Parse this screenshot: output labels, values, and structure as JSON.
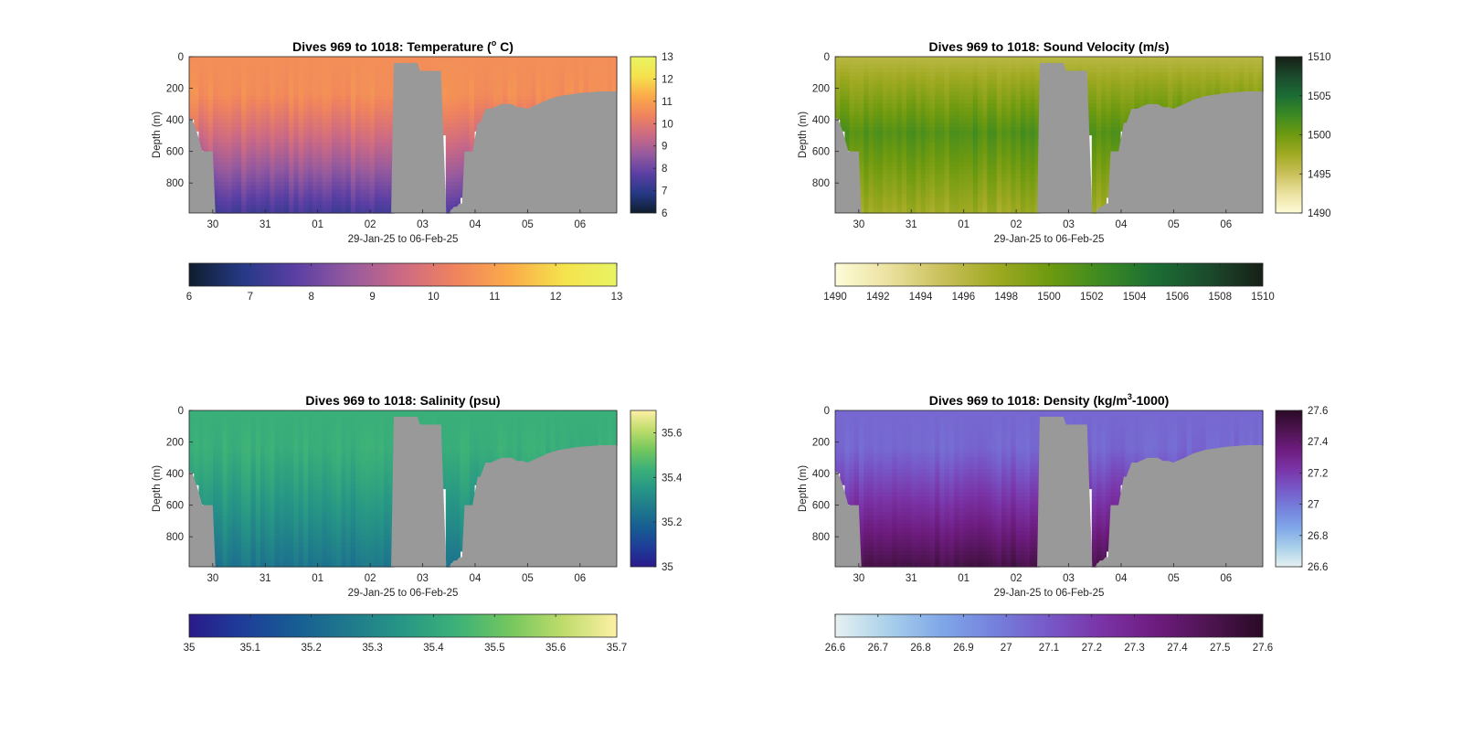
{
  "chart_data": [
    {
      "type": "heatmap",
      "title": {
        "pre": "Dives 969 to 1018: Temperature (",
        "sup": "o",
        "post": " C)"
      },
      "xlabel": "29-Jan-25 to 06-Feb-25",
      "ylabel": "Depth (m)",
      "x_ticks": [
        "30",
        "31",
        "01",
        "02",
        "03",
        "04",
        "05",
        "06"
      ],
      "x_range_days": [
        29.55,
        37.7
      ],
      "y_ticks": [
        0,
        200,
        400,
        600,
        800
      ],
      "ylim": [
        0,
        990
      ],
      "y_reversed": true,
      "colormap": "thermal",
      "colors": [
        "#0f1d2e",
        "#253985",
        "#5b3fa4",
        "#955a9e",
        "#cd6a84",
        "#f0845d",
        "#fbab4a",
        "#f5e24c",
        "#e8f463"
      ],
      "clim": [
        6,
        13
      ],
      "colorbar_right_ticks": [
        "6",
        "7",
        "8",
        "9",
        "10",
        "11",
        "12",
        "13"
      ],
      "colorbar_bottom_ticks": [
        "6",
        "7",
        "8",
        "9",
        "10",
        "11",
        "12",
        "13"
      ],
      "surface_value": 10.6,
      "deep_value": 7.4,
      "mid_depth": 420
    },
    {
      "type": "heatmap",
      "title": {
        "pre": "Dives 969 to 1018: Sound Velocity (m/s)",
        "sup": "",
        "post": ""
      },
      "xlabel": "29-Jan-25 to 06-Feb-25",
      "ylabel": "Depth (m)",
      "x_ticks": [
        "30",
        "31",
        "01",
        "02",
        "03",
        "04",
        "05",
        "06"
      ],
      "x_range_days": [
        29.55,
        37.7
      ],
      "y_ticks": [
        0,
        200,
        400,
        600,
        800
      ],
      "ylim": [
        0,
        990
      ],
      "y_reversed": true,
      "colormap": "speed",
      "colors": [
        "#fefcd8",
        "#ebe1a0",
        "#c9c05b",
        "#a0aa22",
        "#6e9a10",
        "#3c8a22",
        "#1b6d34",
        "#1b4a2c",
        "#171f16"
      ],
      "clim": [
        1490,
        1510
      ],
      "colorbar_right_ticks": [
        "1490",
        "1495",
        "1500",
        "1505",
        "1510"
      ],
      "colorbar_bottom_ticks": [
        "1490",
        "1492",
        "1494",
        "1496",
        "1498",
        "1500",
        "1502",
        "1504",
        "1506",
        "1508",
        "1510"
      ],
      "surface_value": 1496,
      "deep_value": 1497.5,
      "mid_depth": 480,
      "mid_value": 1501.5
    },
    {
      "type": "heatmap",
      "title": {
        "pre": "Dives 969 to 1018: Salinity (psu)",
        "sup": "",
        "post": ""
      },
      "xlabel": "29-Jan-25 to 06-Feb-25",
      "ylabel": "Depth (m)",
      "x_ticks": [
        "30",
        "31",
        "01",
        "02",
        "03",
        "04",
        "05",
        "06"
      ],
      "x_range_days": [
        29.55,
        37.7
      ],
      "y_ticks": [
        0,
        200,
        400,
        600,
        800
      ],
      "ylim": [
        0,
        990
      ],
      "y_reversed": true,
      "colormap": "haline",
      "colors": [
        "#2a1a8a",
        "#1e3d99",
        "#175d93",
        "#1f7a8c",
        "#279785",
        "#3cb178",
        "#74c75e",
        "#bfdc6b",
        "#fdf0a6"
      ],
      "clim": [
        35.0,
        35.7
      ],
      "colorbar_right_ticks": [
        "35",
        "35.2",
        "35.4",
        "35.6"
      ],
      "colorbar_bottom_ticks": [
        "35",
        "35.1",
        "35.2",
        "35.3",
        "35.4",
        "35.5",
        "35.6",
        "35.7"
      ],
      "surface_value": 35.43,
      "deep_value": 35.25,
      "mid_depth": 420
    },
    {
      "type": "heatmap",
      "title": {
        "pre": "Dives 969 to 1018: Density (kg/m",
        "sup": "3",
        "post": "-1000)"
      },
      "xlabel": "29-Jan-25 to 06-Feb-25",
      "ylabel": "Depth (m)",
      "x_ticks": [
        "30",
        "31",
        "01",
        "02",
        "03",
        "04",
        "05",
        "06"
      ],
      "x_range_days": [
        29.55,
        37.7
      ],
      "y_ticks": [
        0,
        200,
        400,
        600,
        800
      ],
      "ylim": [
        0,
        990
      ],
      "y_reversed": true,
      "colormap": "dense",
      "colors": [
        "#e6f1f1",
        "#a9d0ea",
        "#7fa7e8",
        "#7580dc",
        "#7758c8",
        "#7a33a6",
        "#6d1c7e",
        "#4d1450",
        "#2a0a26"
      ],
      "clim": [
        26.6,
        27.6
      ],
      "colorbar_right_ticks": [
        "26.6",
        "26.8",
        "27",
        "27.2",
        "27.4",
        "27.6"
      ],
      "colorbar_bottom_ticks": [
        "26.6",
        "26.7",
        "26.8",
        "26.9",
        "27",
        "27.1",
        "27.2",
        "27.3",
        "27.4",
        "27.5",
        "27.6"
      ],
      "surface_value": 27.05,
      "deep_value": 27.5,
      "mid_depth": 420
    }
  ],
  "bathymetry": {
    "no_data_color": "#999999",
    "time_days": [
      29.55,
      29.6,
      29.7,
      29.8,
      30.0,
      30.05,
      33.4,
      33.45,
      33.9,
      33.95,
      34.3,
      34.35,
      34.45,
      34.5,
      34.6,
      34.65,
      34.7,
      34.75,
      34.8,
      34.95,
      35.0,
      35.05,
      35.1,
      35.2,
      35.3,
      35.5,
      35.7,
      35.8,
      35.9,
      36.0,
      36.2,
      36.4,
      36.6,
      36.8,
      37.0,
      37.2,
      37.4,
      37.5,
      37.6,
      37.7
    ],
    "bottom_depth_m": [
      390,
      390,
      480,
      600,
      600,
      990,
      990,
      40,
      40,
      90,
      90,
      90,
      990,
      990,
      950,
      950,
      930,
      930,
      600,
      600,
      510,
      420,
      420,
      330,
      330,
      300,
      300,
      320,
      320,
      330,
      300,
      270,
      250,
      240,
      230,
      225,
      220,
      220,
      220,
      220
    ]
  }
}
